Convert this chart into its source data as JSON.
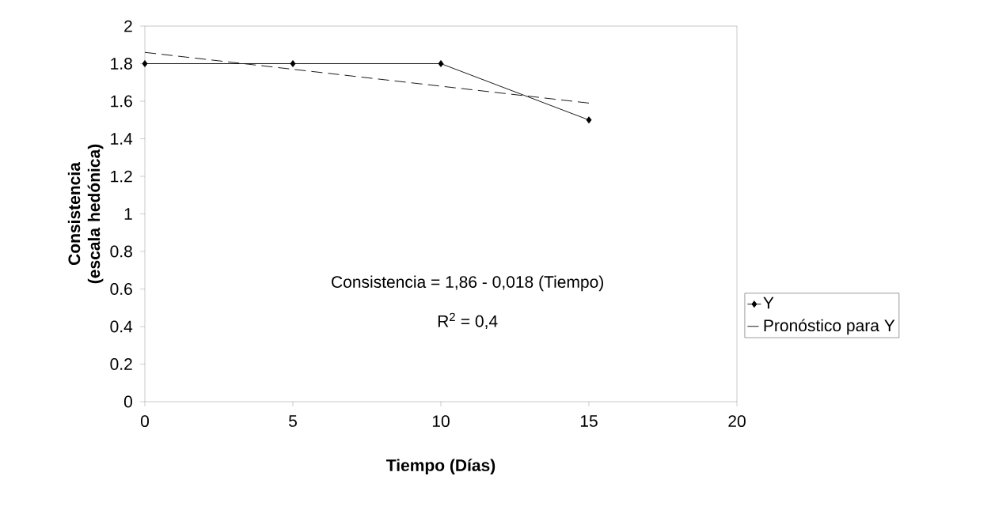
{
  "chart_data": {
    "type": "line",
    "xlabel": "Tiempo (Días)",
    "ylabel": "Consistencia (escala hedónica)",
    "xlim": [
      0,
      20
    ],
    "ylim": [
      0,
      2
    ],
    "xticks": [
      0,
      5,
      10,
      15,
      20
    ],
    "yticks": [
      0,
      0.2,
      0.4,
      0.6,
      0.8,
      1,
      1.2,
      1.4,
      1.6,
      1.8,
      2
    ],
    "legend": "right",
    "annotations": [
      "Consistencia = 1,86 - 0,018 (Tiempo)",
      "R$^{2}$ = 0,4"
    ],
    "series": [
      {
        "name": "Y",
        "color": "#000000",
        "marker": "diamond",
        "line_style": "solid",
        "x": [
          0,
          5,
          10,
          15
        ],
        "values": [
          1.8,
          1.8,
          1.8,
          1.5
        ]
      },
      {
        "name": "Pronóstico para Y",
        "color": "#000000",
        "marker": "none",
        "line_style": "dashed",
        "x": [
          0,
          15
        ],
        "values": [
          1.86,
          1.59
        ]
      }
    ]
  }
}
